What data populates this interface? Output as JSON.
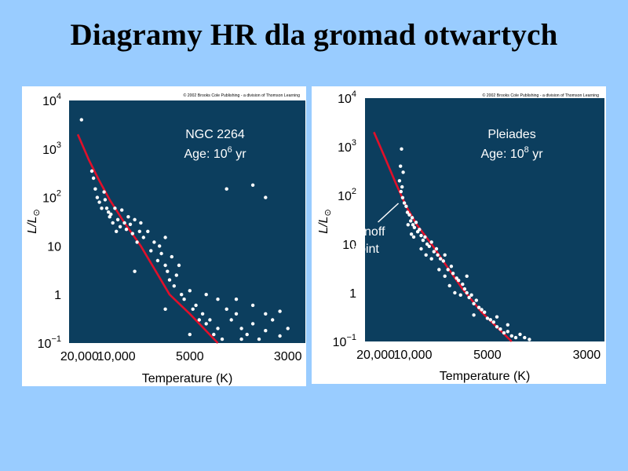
{
  "slide": {
    "title": "Diagramy HR dla gromad otwartych"
  },
  "colors": {
    "background": "#99ccff",
    "plot_background": "#0c3e5e",
    "track": "#e0102a",
    "points": "#ffffff"
  },
  "chart_data": [
    {
      "type": "scatter",
      "copyright": "© 2002 Brooks Cole Publishing - a division of Thomson Learning",
      "annotation": {
        "name": "NGC 2264",
        "age_prefix": "Age: 10",
        "age_exp": "6",
        "age_suffix": " yr"
      },
      "ylabel": {
        "main": "L/L",
        "sub": "⊙"
      },
      "xlabel": "Temperature (K)",
      "x_scale": "reciprocal",
      "x_ticks": [
        {
          "value": 20000,
          "label": "20,000"
        },
        {
          "value": 10000,
          "label": "10,000"
        },
        {
          "value": 5000,
          "label": "5000"
        },
        {
          "value": 3000,
          "label": "3000"
        }
      ],
      "y_scale": "log",
      "y_ticks": [
        {
          "value": 0.1,
          "base": "10",
          "exp": "−1"
        },
        {
          "value": 1,
          "base": "1",
          "exp": ""
        },
        {
          "value": 10,
          "base": "10",
          "exp": ""
        },
        {
          "value": 100,
          "base": "10",
          "exp": "2"
        },
        {
          "value": 1000,
          "base": "10",
          "exp": "3"
        },
        {
          "value": 10000,
          "base": "10",
          "exp": "4"
        }
      ],
      "xlim": [
        28000,
        2800
      ],
      "ylim": [
        0.1,
        10000
      ],
      "main_sequence": [
        [
          21000,
          2000
        ],
        [
          16000,
          600
        ],
        [
          13000,
          220
        ],
        [
          11000,
          90
        ],
        [
          9000,
          30
        ],
        [
          7500,
          10
        ],
        [
          6500,
          3
        ],
        [
          5800,
          1
        ],
        [
          5000,
          0.4
        ],
        [
          4200,
          0.1
        ]
      ],
      "stars": [
        [
          19000,
          4000
        ],
        [
          15000,
          350
        ],
        [
          14500,
          250
        ],
        [
          14000,
          150
        ],
        [
          13500,
          100
        ],
        [
          13000,
          80
        ],
        [
          12500,
          60
        ],
        [
          12000,
          130
        ],
        [
          11800,
          90
        ],
        [
          11500,
          60
        ],
        [
          11200,
          50
        ],
        [
          11000,
          40
        ],
        [
          10800,
          45
        ],
        [
          10500,
          30
        ],
        [
          10200,
          60
        ],
        [
          10000,
          20
        ],
        [
          9800,
          35
        ],
        [
          9500,
          25
        ],
        [
          9300,
          55
        ],
        [
          9000,
          30
        ],
        [
          8800,
          22
        ],
        [
          8600,
          40
        ],
        [
          8400,
          28
        ],
        [
          8200,
          18
        ],
        [
          8000,
          35
        ],
        [
          7800,
          12
        ],
        [
          7600,
          20
        ],
        [
          7500,
          30
        ],
        [
          7300,
          15
        ],
        [
          7000,
          20
        ],
        [
          6800,
          8
        ],
        [
          6600,
          12
        ],
        [
          6400,
          5
        ],
        [
          6300,
          10
        ],
        [
          6200,
          7
        ],
        [
          6000,
          4
        ],
        [
          6000,
          15
        ],
        [
          5900,
          3
        ],
        [
          5800,
          2
        ],
        [
          5700,
          6
        ],
        [
          5600,
          1.5
        ],
        [
          5500,
          2.5
        ],
        [
          5400,
          4
        ],
        [
          5300,
          1
        ],
        [
          5200,
          0.8
        ],
        [
          5000,
          1.2
        ],
        [
          4900,
          0.5
        ],
        [
          4800,
          0.6
        ],
        [
          4700,
          0.3
        ],
        [
          4600,
          0.4
        ],
        [
          4500,
          0.25
        ],
        [
          4400,
          0.3
        ],
        [
          4300,
          0.15
        ],
        [
          4200,
          0.2
        ],
        [
          4100,
          0.12
        ],
        [
          4000,
          0.5
        ],
        [
          3900,
          0.3
        ],
        [
          3800,
          0.4
        ],
        [
          3700,
          0.2
        ],
        [
          3600,
          0.15
        ],
        [
          3500,
          0.25
        ],
        [
          3400,
          0.12
        ],
        [
          3300,
          0.18
        ],
        [
          3200,
          0.3
        ],
        [
          3100,
          0.14
        ],
        [
          3000,
          0.2
        ],
        [
          3800,
          0.8
        ],
        [
          3500,
          0.6
        ],
        [
          3300,
          0.4
        ],
        [
          3100,
          0.45
        ],
        [
          4000,
          150
        ],
        [
          3500,
          180
        ],
        [
          3300,
          100
        ],
        [
          8000,
          3
        ],
        [
          6000,
          0.5
        ],
        [
          4500,
          1
        ],
        [
          5000,
          0.15
        ],
        [
          4200,
          0.8
        ],
        [
          3700,
          0.12
        ]
      ]
    },
    {
      "type": "scatter",
      "copyright": "© 2002 Brooks Cole Publishing - a division of Thomson Learning",
      "annotation": {
        "name": "Pleiades",
        "age_prefix": "Age: 10",
        "age_exp": "8",
        "age_suffix": " yr"
      },
      "turnoff_label": [
        "Turnoff",
        "point"
      ],
      "ylabel": {
        "main": "L/L",
        "sub": "⊙"
      },
      "xlabel": "Temperature (K)",
      "x_scale": "reciprocal",
      "x_ticks": [
        {
          "value": 20000,
          "label": "20,000"
        },
        {
          "value": 10000,
          "label": "10,000"
        },
        {
          "value": 5000,
          "label": "5000"
        },
        {
          "value": 3000,
          "label": "3000"
        }
      ],
      "y_scale": "log",
      "y_ticks": [
        {
          "value": 0.1,
          "base": "10",
          "exp": "−1"
        },
        {
          "value": 1,
          "base": "1",
          "exp": ""
        },
        {
          "value": 10,
          "base": "10",
          "exp": ""
        },
        {
          "value": 100,
          "base": "10",
          "exp": "2"
        },
        {
          "value": 1000,
          "base": "10",
          "exp": "3"
        },
        {
          "value": 10000,
          "base": "10",
          "exp": "4"
        }
      ],
      "xlim": [
        28000,
        2800
      ],
      "ylim": [
        0.1,
        10000
      ],
      "main_sequence": [
        [
          21000,
          2000
        ],
        [
          16000,
          600
        ],
        [
          13000,
          180
        ],
        [
          11000,
          60
        ],
        [
          9500,
          25
        ],
        [
          8000,
          10
        ],
        [
          7000,
          4
        ],
        [
          6000,
          1.2
        ],
        [
          5200,
          0.4
        ],
        [
          4300,
          0.1
        ]
      ],
      "turnoff_point": [
        11800,
        80
      ],
      "stars": [
        [
          11800,
          900
        ],
        [
          12000,
          400
        ],
        [
          11500,
          300
        ],
        [
          12200,
          200
        ],
        [
          11700,
          150
        ],
        [
          11900,
          120
        ],
        [
          11600,
          90
        ],
        [
          11300,
          70
        ],
        [
          11000,
          60
        ],
        [
          10800,
          45
        ],
        [
          10500,
          40
        ],
        [
          10300,
          30
        ],
        [
          10100,
          35
        ],
        [
          10000,
          25
        ],
        [
          9800,
          22
        ],
        [
          9600,
          28
        ],
        [
          9400,
          18
        ],
        [
          9200,
          20
        ],
        [
          9000,
          15
        ],
        [
          8800,
          12
        ],
        [
          8600,
          14
        ],
        [
          8400,
          10
        ],
        [
          8200,
          9
        ],
        [
          8000,
          11
        ],
        [
          7800,
          7
        ],
        [
          7600,
          8
        ],
        [
          7500,
          6
        ],
        [
          7300,
          5
        ],
        [
          7100,
          4.5
        ],
        [
          7000,
          6
        ],
        [
          6800,
          3
        ],
        [
          6600,
          3.5
        ],
        [
          6500,
          2.5
        ],
        [
          6300,
          2
        ],
        [
          6200,
          1.8
        ],
        [
          6000,
          1.5
        ],
        [
          5900,
          1.2
        ],
        [
          5800,
          1
        ],
        [
          5700,
          0.8
        ],
        [
          5600,
          0.9
        ],
        [
          5500,
          0.6
        ],
        [
          5400,
          0.7
        ],
        [
          5300,
          0.5
        ],
        [
          5200,
          0.45
        ],
        [
          5100,
          0.4
        ],
        [
          5000,
          0.3
        ],
        [
          4900,
          0.28
        ],
        [
          4800,
          0.25
        ],
        [
          4700,
          0.2
        ],
        [
          4600,
          0.18
        ],
        [
          4500,
          0.15
        ],
        [
          4400,
          0.16
        ],
        [
          4300,
          0.13
        ],
        [
          4200,
          0.12
        ],
        [
          4100,
          0.14
        ],
        [
          4000,
          0.12
        ],
        [
          3900,
          0.11
        ],
        [
          10700,
          25
        ],
        [
          10200,
          16
        ],
        [
          9900,
          14
        ],
        [
          8500,
          6
        ],
        [
          7400,
          3
        ],
        [
          6700,
          1.4
        ],
        [
          6100,
          0.9
        ],
        [
          5500,
          0.35
        ],
        [
          4700,
          0.32
        ],
        [
          4400,
          0.22
        ],
        [
          5800,
          2.2
        ],
        [
          6400,
          1
        ],
        [
          7000,
          2.2
        ],
        [
          8000,
          5
        ],
        [
          9000,
          8
        ]
      ]
    }
  ]
}
